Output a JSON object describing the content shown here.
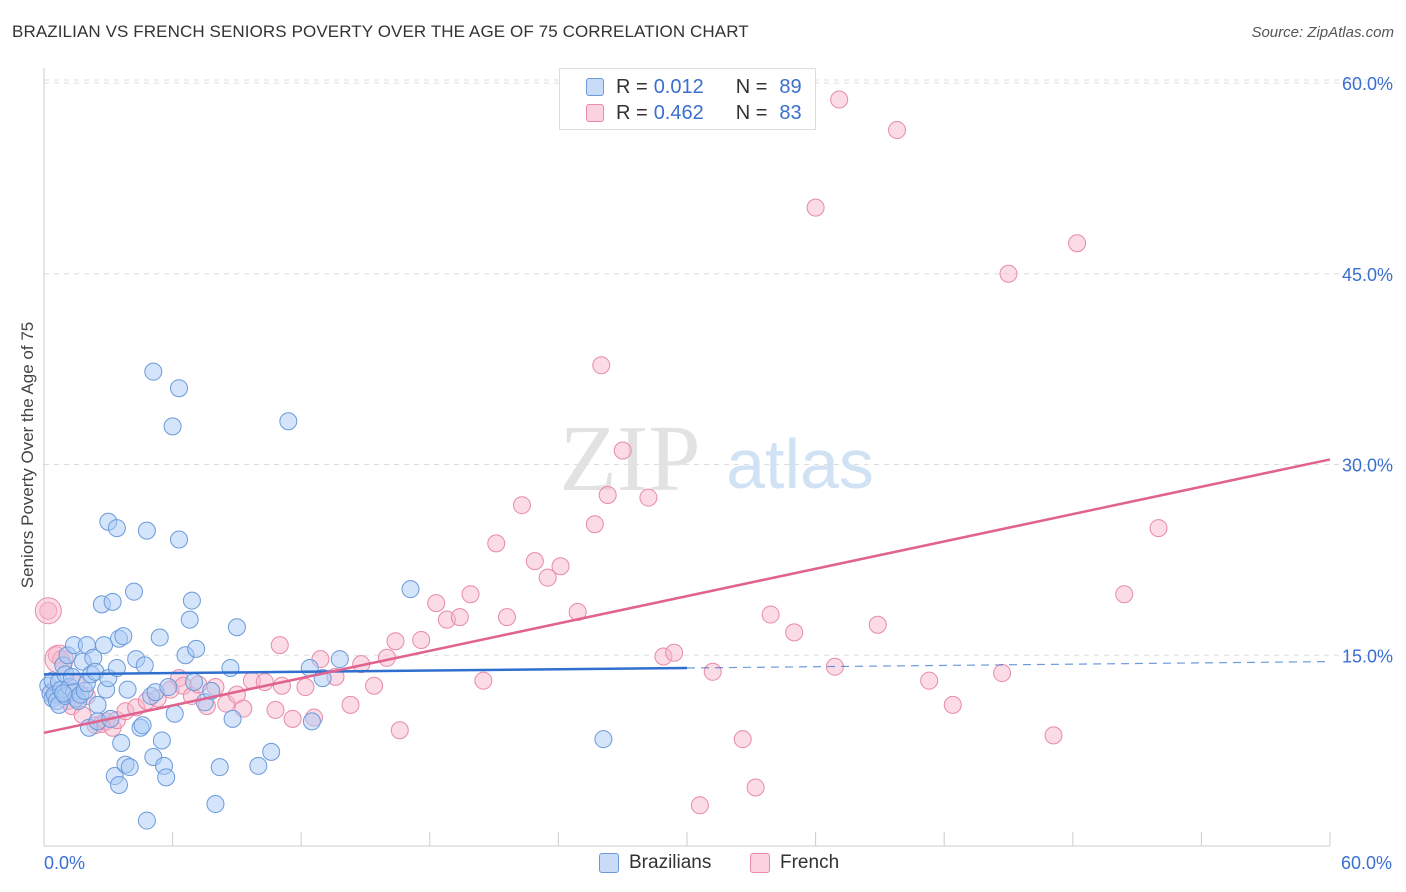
{
  "header": {
    "title": "BRAZILIAN VS FRENCH SENIORS POVERTY OVER THE AGE OF 75 CORRELATION CHART",
    "source": "Source: ZipAtlas.com"
  },
  "watermark": {
    "zip": "ZIP",
    "atlas": "atlas"
  },
  "legend": {
    "rows": [
      {
        "r_label": "R =",
        "r_value": "0.012",
        "n_label": "N =",
        "n_value": "89",
        "color": "#a9c9f5"
      },
      {
        "r_label": "R =",
        "r_value": "0.462",
        "n_label": "N =",
        "n_value": "83",
        "color": "#f7b8cc"
      }
    ]
  },
  "bottom_legend": [
    {
      "label": "Brazilians",
      "color": "#a9c9f5"
    },
    {
      "label": "French",
      "color": "#f7b8cc"
    }
  ],
  "colors": {
    "blue_fill": "#a9c9f5",
    "blue_stroke": "#6b9ad9",
    "blue_line": "#2f6fcf",
    "pink_fill": "#f7b8cc",
    "pink_stroke": "#e88aa8",
    "pink_line": "#e0638f",
    "grid": "#dddddd",
    "axis_label": "#3a6fd0"
  },
  "chart_data": {
    "type": "scatter",
    "title": "BRAZILIAN VS FRENCH SENIORS POVERTY OVER THE AGE OF 75 CORRELATION CHART",
    "xlabel": "",
    "ylabel": "Seniors Poverty Over the Age of 75",
    "xlim": [
      0,
      60
    ],
    "ylim": [
      0,
      60
    ],
    "x_tick_labels": [
      "0.0%",
      "60.0%"
    ],
    "y_ticks": [
      15,
      30,
      45,
      60
    ],
    "y_tick_labels": [
      "15.0%",
      "30.0%",
      "45.0%",
      "60.0%"
    ],
    "grid": true,
    "series": [
      {
        "name": "Brazilians",
        "points": [
          [
            0.2,
            12.6
          ],
          [
            0.3,
            12.0
          ],
          [
            0.4,
            11.6
          ],
          [
            0.4,
            13.0
          ],
          [
            0.5,
            11.9
          ],
          [
            0.6,
            11.4
          ],
          [
            0.7,
            12.9
          ],
          [
            0.7,
            11.1
          ],
          [
            0.8,
            12.3
          ],
          [
            0.9,
            14.2
          ],
          [
            1.0,
            13.5
          ],
          [
            1.0,
            11.8
          ],
          [
            1.1,
            15.0
          ],
          [
            1.2,
            12.5
          ],
          [
            1.3,
            13.3
          ],
          [
            1.4,
            15.8
          ],
          [
            1.4,
            12.1
          ],
          [
            1.5,
            11.6
          ],
          [
            1.6,
            11.4
          ],
          [
            1.7,
            11.9
          ],
          [
            1.8,
            14.5
          ],
          [
            1.9,
            12.2
          ],
          [
            2.0,
            15.8
          ],
          [
            2.0,
            12.8
          ],
          [
            2.1,
            9.3
          ],
          [
            2.2,
            13.5
          ],
          [
            2.3,
            14.8
          ],
          [
            2.4,
            13.7
          ],
          [
            2.5,
            11.1
          ],
          [
            2.5,
            9.8
          ],
          [
            2.7,
            19.0
          ],
          [
            2.8,
            15.8
          ],
          [
            2.9,
            12.3
          ],
          [
            3.0,
            13.2
          ],
          [
            3.1,
            10.0
          ],
          [
            3.2,
            19.2
          ],
          [
            3.3,
            5.5
          ],
          [
            3.4,
            14.0
          ],
          [
            3.5,
            16.3
          ],
          [
            3.5,
            4.8
          ],
          [
            3.6,
            8.1
          ],
          [
            3.7,
            16.5
          ],
          [
            3.8,
            6.4
          ],
          [
            3.9,
            12.3
          ],
          [
            4.0,
            6.2
          ],
          [
            4.2,
            20.0
          ],
          [
            4.3,
            14.7
          ],
          [
            4.5,
            9.3
          ],
          [
            4.6,
            9.5
          ],
          [
            4.7,
            14.2
          ],
          [
            4.8,
            2.0
          ],
          [
            5.0,
            11.8
          ],
          [
            5.1,
            7.0
          ],
          [
            5.2,
            12.1
          ],
          [
            5.4,
            16.4
          ],
          [
            5.5,
            8.3
          ],
          [
            5.6,
            6.3
          ],
          [
            5.7,
            5.4
          ],
          [
            5.8,
            12.5
          ],
          [
            6.1,
            10.4
          ],
          [
            6.3,
            24.1
          ],
          [
            6.6,
            15.0
          ],
          [
            6.8,
            17.8
          ],
          [
            6.9,
            19.3
          ],
          [
            7.0,
            12.9
          ],
          [
            7.1,
            15.5
          ],
          [
            7.5,
            11.3
          ],
          [
            7.8,
            12.2
          ],
          [
            8.0,
            3.3
          ],
          [
            8.2,
            6.2
          ],
          [
            8.7,
            14.0
          ],
          [
            8.8,
            10.0
          ],
          [
            9.0,
            17.2
          ],
          [
            10.0,
            6.3
          ],
          [
            10.6,
            7.4
          ],
          [
            11.4,
            33.4
          ],
          [
            12.4,
            14.0
          ],
          [
            12.5,
            9.8
          ],
          [
            13.0,
            13.2
          ],
          [
            13.8,
            14.7
          ],
          [
            17.1,
            20.2
          ],
          [
            26.1,
            8.4
          ],
          [
            3.0,
            25.5
          ],
          [
            3.4,
            25.0
          ],
          [
            4.8,
            24.8
          ],
          [
            5.1,
            37.3
          ],
          [
            6.3,
            36.0
          ],
          [
            6.0,
            33.0
          ],
          [
            0.9,
            12.0
          ]
        ]
      },
      {
        "name": "French",
        "points": [
          [
            0.2,
            18.5
          ],
          [
            0.4,
            12.2
          ],
          [
            0.6,
            15.0
          ],
          [
            0.8,
            14.7
          ],
          [
            1.1,
            11.4
          ],
          [
            1.3,
            11.0
          ],
          [
            1.5,
            12.8
          ],
          [
            1.8,
            10.3
          ],
          [
            2.0,
            11.8
          ],
          [
            2.4,
            9.5
          ],
          [
            2.7,
            9.6
          ],
          [
            2.9,
            9.8
          ],
          [
            3.2,
            9.3
          ],
          [
            3.4,
            9.9
          ],
          [
            3.8,
            10.6
          ],
          [
            4.3,
            10.9
          ],
          [
            4.8,
            11.4
          ],
          [
            5.3,
            11.6
          ],
          [
            5.9,
            12.3
          ],
          [
            6.3,
            13.2
          ],
          [
            6.5,
            12.6
          ],
          [
            6.9,
            11.8
          ],
          [
            7.2,
            12.7
          ],
          [
            7.6,
            11.0
          ],
          [
            8.0,
            12.5
          ],
          [
            8.5,
            11.2
          ],
          [
            9.0,
            11.9
          ],
          [
            9.3,
            10.8
          ],
          [
            9.7,
            13.0
          ],
          [
            10.3,
            12.9
          ],
          [
            10.8,
            10.7
          ],
          [
            11.1,
            12.6
          ],
          [
            11.6,
            10.0
          ],
          [
            12.2,
            12.5
          ],
          [
            12.6,
            10.1
          ],
          [
            12.9,
            14.7
          ],
          [
            13.6,
            13.3
          ],
          [
            14.3,
            11.1
          ],
          [
            14.8,
            14.3
          ],
          [
            15.4,
            12.6
          ],
          [
            16.0,
            14.8
          ],
          [
            16.4,
            16.1
          ],
          [
            16.6,
            9.1
          ],
          [
            17.6,
            16.2
          ],
          [
            18.3,
            19.1
          ],
          [
            18.8,
            17.8
          ],
          [
            19.4,
            18.0
          ],
          [
            19.9,
            19.8
          ],
          [
            20.5,
            13.0
          ],
          [
            21.1,
            23.8
          ],
          [
            21.6,
            18.0
          ],
          [
            22.3,
            26.8
          ],
          [
            22.9,
            22.4
          ],
          [
            23.5,
            21.1
          ],
          [
            24.1,
            22.0
          ],
          [
            24.9,
            18.4
          ],
          [
            25.7,
            25.3
          ],
          [
            26.3,
            27.6
          ],
          [
            27.0,
            31.1
          ],
          [
            28.2,
            27.4
          ],
          [
            28.9,
            14.9
          ],
          [
            29.4,
            15.2
          ],
          [
            30.6,
            3.2
          ],
          [
            31.2,
            13.7
          ],
          [
            32.6,
            8.4
          ],
          [
            33.9,
            18.2
          ],
          [
            35.0,
            16.8
          ],
          [
            36.9,
            14.1
          ],
          [
            37.1,
            58.7
          ],
          [
            38.9,
            17.4
          ],
          [
            39.8,
            56.3
          ],
          [
            41.3,
            13.0
          ],
          [
            42.4,
            11.1
          ],
          [
            44.7,
            13.6
          ],
          [
            45.0,
            45.0
          ],
          [
            47.1,
            8.7
          ],
          [
            48.2,
            47.4
          ],
          [
            50.4,
            19.8
          ],
          [
            52.0,
            25.0
          ],
          [
            11.0,
            15.8
          ],
          [
            26.0,
            37.8
          ],
          [
            36.0,
            50.2
          ],
          [
            33.2,
            4.6
          ]
        ]
      }
    ],
    "trend_lines": [
      {
        "series": "Brazilians",
        "x": [
          0,
          30
        ],
        "y": [
          13.5,
          14.0
        ],
        "extended_to": 60
      },
      {
        "series": "French",
        "x": [
          0,
          60
        ],
        "y": [
          8.9,
          30.4
        ]
      }
    ]
  }
}
